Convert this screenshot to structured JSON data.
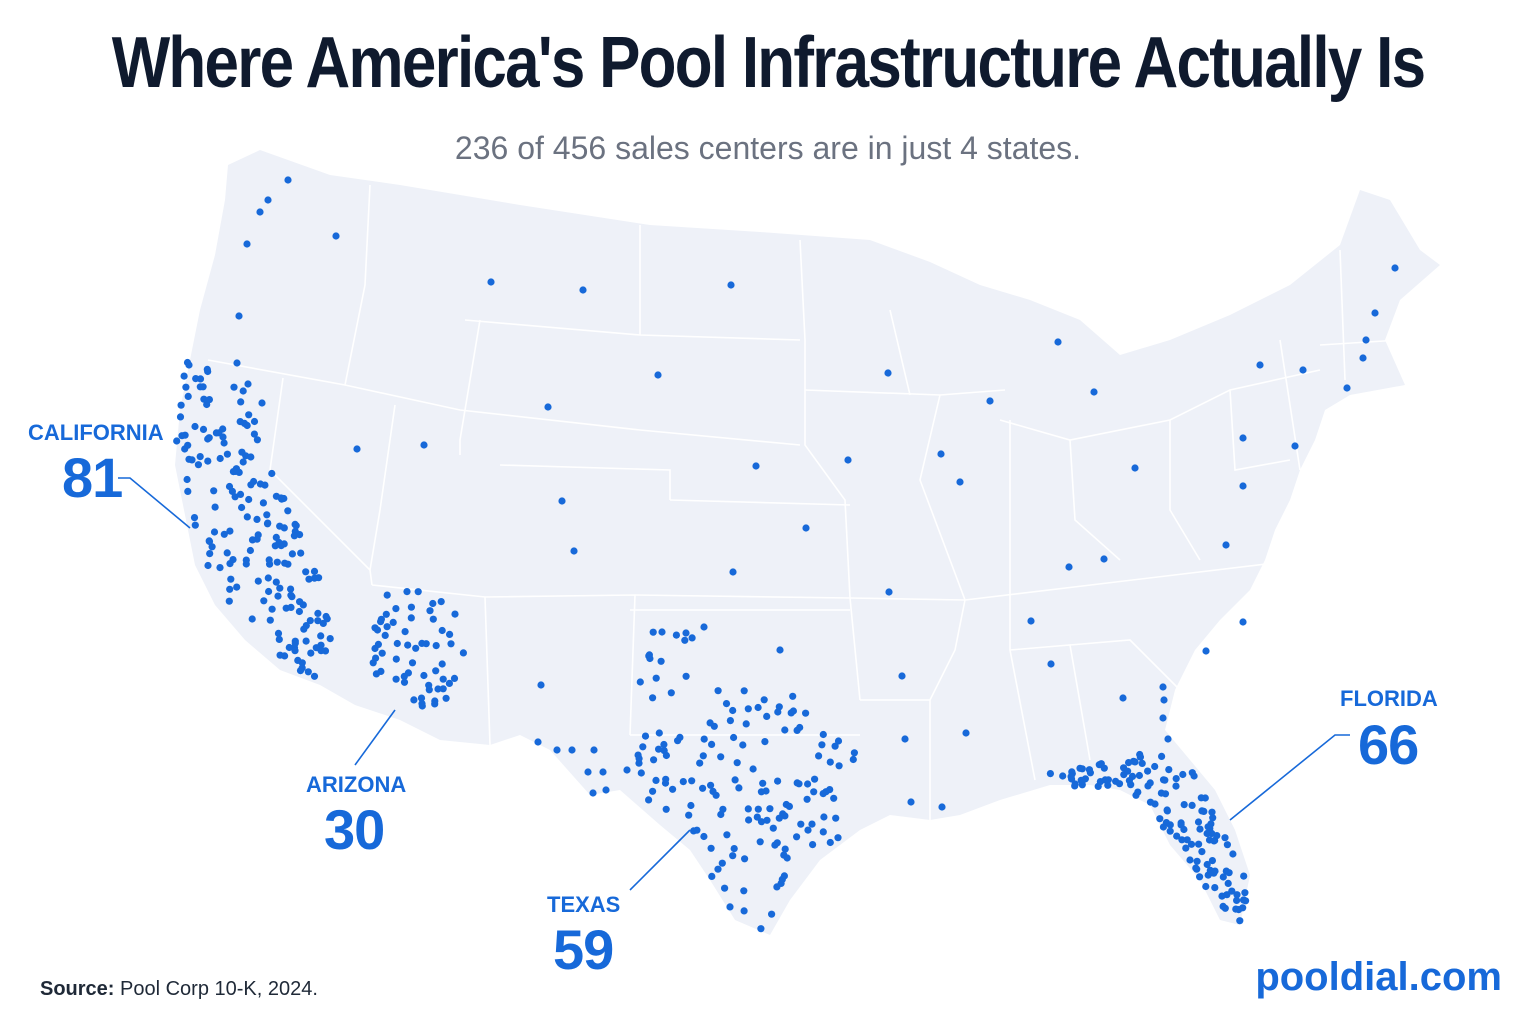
{
  "title": "Where America's Pool Infrastructure Actually Is",
  "subtitle": "236 of 456 sales centers are in just 4 states.",
  "colors": {
    "land": "#eef1f8",
    "border": "#ffffff",
    "dot": "#1769d9",
    "title": "#0f1a2e",
    "subtitle": "#6b7280",
    "accent": "#1769d9"
  },
  "callouts": {
    "california": {
      "state": "CALIFORNIA",
      "count": "81"
    },
    "arizona": {
      "state": "ARIZONA",
      "count": "30"
    },
    "texas": {
      "state": "TEXAS",
      "count": "59"
    },
    "florida": {
      "state": "FLORIDA",
      "count": "66"
    }
  },
  "source": {
    "label": "Source:",
    "text": "Pool Corp 10-K, 2024."
  },
  "brand": "pooldial.com"
}
